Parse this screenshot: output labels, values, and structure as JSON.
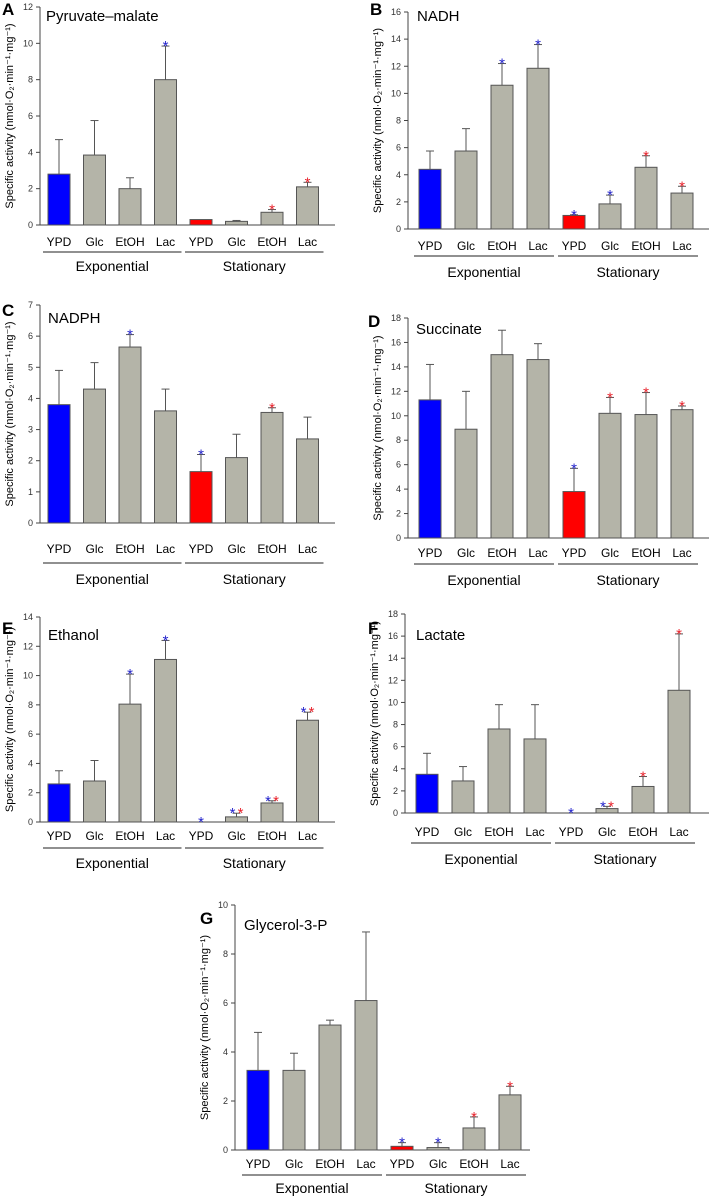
{
  "colors": {
    "exp_ypd": "#0000ff",
    "stat_ypd": "#ff0000",
    "other": "#b4b4a8",
    "star_blue": "#2222cc",
    "star_red": "#e8202a"
  },
  "ylabel": "Specific activity (nmol·O₂·min⁻¹·mg⁻¹)",
  "chart_data": [
    {
      "type": "bar",
      "panel": "A",
      "title": "Pyruvate–malate",
      "categories": [
        "YPD",
        "Glc",
        "EtOH",
        "Lac",
        "YPD",
        "Glc",
        "EtOH",
        "Lac"
      ],
      "groups": [
        "Exponential",
        "Stationary"
      ],
      "values": [
        2.8,
        3.85,
        2.0,
        8.0,
        0.3,
        0.2,
        0.7,
        2.1
      ],
      "error": [
        1.9,
        1.9,
        0.6,
        1.85,
        0,
        0.05,
        0.15,
        0.25
      ],
      "significance": [
        [],
        [],
        [],
        [
          "blue"
        ],
        [],
        [],
        [
          "red"
        ],
        [
          "red"
        ]
      ],
      "ylim": [
        0,
        12
      ],
      "ystep": 2
    },
    {
      "type": "bar",
      "panel": "B",
      "title": "NADH",
      "categories": [
        "YPD",
        "Glc",
        "EtOH",
        "Lac",
        "YPD",
        "Glc",
        "EtOH",
        "Lac"
      ],
      "groups": [
        "Exponential",
        "Stationary"
      ],
      "values": [
        4.4,
        5.75,
        10.6,
        11.85,
        1.0,
        1.85,
        4.55,
        2.65
      ],
      "error": [
        1.35,
        1.65,
        1.6,
        1.75,
        0.05,
        0.65,
        0.85,
        0.5
      ],
      "significance": [
        [],
        [],
        [
          "blue"
        ],
        [
          "blue"
        ],
        [
          "blue"
        ],
        [
          "blue"
        ],
        [
          "red"
        ],
        [
          "red"
        ]
      ],
      "ylim": [
        0,
        16
      ],
      "ystep": 2
    },
    {
      "type": "bar",
      "panel": "C",
      "title": "NADPH",
      "categories": [
        "YPD",
        "Glc",
        "EtOH",
        "Lac",
        "YPD",
        "Glc",
        "EtOH",
        "Lac"
      ],
      "groups": [
        "Exponential",
        "Stationary"
      ],
      "values": [
        3.8,
        4.3,
        5.65,
        3.6,
        1.65,
        2.1,
        3.55,
        2.7
      ],
      "error": [
        1.1,
        0.85,
        0.4,
        0.7,
        0.55,
        0.75,
        0.15,
        0.7
      ],
      "significance": [
        [],
        [],
        [
          "blue"
        ],
        [],
        [
          "blue"
        ],
        [],
        [
          "red"
        ],
        []
      ],
      "ylim": [
        0,
        7
      ],
      "ystep": 1
    },
    {
      "type": "bar",
      "panel": "D",
      "title": "Succinate",
      "categories": [
        "YPD",
        "Glc",
        "EtOH",
        "Lac",
        "YPD",
        "Glc",
        "EtOH",
        "Lac"
      ],
      "groups": [
        "Exponential",
        "Stationary"
      ],
      "values": [
        11.3,
        8.9,
        15.0,
        14.6,
        3.8,
        10.2,
        10.1,
        10.5
      ],
      "error": [
        2.9,
        3.1,
        2.0,
        1.3,
        1.9,
        1.3,
        1.8,
        0.3
      ],
      "significance": [
        [],
        [],
        [],
        [],
        [
          "blue"
        ],
        [
          "red"
        ],
        [
          "red"
        ],
        [
          "red"
        ]
      ],
      "ylim": [
        0,
        18
      ],
      "ystep": 2
    },
    {
      "type": "bar",
      "panel": "E",
      "title": "Ethanol",
      "categories": [
        "YPD",
        "Glc",
        "EtOH",
        "Lac",
        "YPD",
        "Glc",
        "EtOH",
        "Lac"
      ],
      "groups": [
        "Exponential",
        "Stationary"
      ],
      "values": [
        2.6,
        2.8,
        8.05,
        11.1,
        0,
        0.35,
        1.3,
        6.95
      ],
      "error": [
        0.9,
        1.4,
        2.05,
        1.3,
        0,
        0.25,
        0.15,
        0.55
      ],
      "significance": [
        [],
        [],
        [
          "blue"
        ],
        [
          "blue"
        ],
        [
          "blue"
        ],
        [
          "blue",
          "red"
        ],
        [
          "blue",
          "red"
        ],
        [
          "blue",
          "red"
        ]
      ],
      "ylim": [
        0,
        14
      ],
      "ystep": 2
    },
    {
      "type": "bar",
      "panel": "F",
      "title": "Lactate",
      "categories": [
        "YPD",
        "Glc",
        "EtOH",
        "Lac",
        "YPD",
        "Glc",
        "EtOH",
        "Lac"
      ],
      "groups": [
        "Exponential",
        "Stationary"
      ],
      "values": [
        3.5,
        2.9,
        7.6,
        6.7,
        0,
        0.4,
        2.4,
        11.1
      ],
      "error": [
        1.9,
        1.3,
        2.2,
        3.1,
        0,
        0.2,
        0.9,
        5.1
      ],
      "significance": [
        [],
        [],
        [],
        [],
        [
          "blue"
        ],
        [
          "blue",
          "red"
        ],
        [
          "red"
        ],
        [
          "red"
        ]
      ],
      "ylim": [
        0,
        18
      ],
      "ystep": 2
    },
    {
      "type": "bar",
      "panel": "G",
      "title": "Glycerol-3-P",
      "categories": [
        "YPD",
        "Glc",
        "EtOH",
        "Lac",
        "YPD",
        "Glc",
        "EtOH",
        "Lac"
      ],
      "groups": [
        "Exponential",
        "Stationary"
      ],
      "values": [
        3.25,
        3.25,
        5.1,
        6.1,
        0.15,
        0.1,
        0.9,
        2.25
      ],
      "error": [
        1.55,
        0.7,
        0.2,
        2.8,
        0.15,
        0.2,
        0.45,
        0.35
      ],
      "significance": [
        [],
        [],
        [],
        [],
        [
          "blue"
        ],
        [
          "blue"
        ],
        [
          "red"
        ],
        [
          "red"
        ]
      ],
      "ylim": [
        0,
        10
      ],
      "ystep": 2
    }
  ]
}
